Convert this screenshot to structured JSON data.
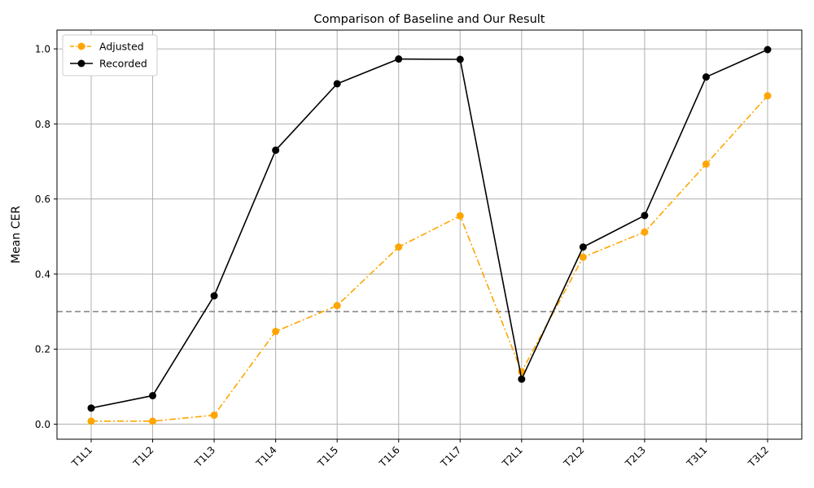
{
  "chart_data": {
    "type": "line",
    "title": "Comparison of Baseline and Our Result",
    "xlabel": "",
    "ylabel": "Mean CER",
    "categories": [
      "T1L1",
      "T1L2",
      "T1L3",
      "T1L4",
      "T1L5",
      "T1L6",
      "T1L7",
      "T2L1",
      "T2L2",
      "T2L3",
      "T3L1",
      "T3L2"
    ],
    "series": [
      {
        "name": "Adjusted",
        "color": "#ffa500",
        "line_style": "dashdot",
        "marker": "circle",
        "values": [
          0.008,
          0.008,
          0.024,
          0.247,
          0.316,
          0.472,
          0.555,
          0.14,
          0.445,
          0.512,
          0.693,
          0.875
        ]
      },
      {
        "name": "Recorded",
        "color": "#000000",
        "line_style": "solid",
        "marker": "circle",
        "values": [
          0.043,
          0.076,
          0.342,
          0.73,
          0.907,
          0.973,
          0.972,
          0.12,
          0.472,
          0.556,
          0.925,
          0.998
        ]
      }
    ],
    "reference_line": {
      "y": 0.3,
      "color": "#808080",
      "style": "dashed"
    },
    "ylim": [
      -0.04,
      1.05
    ],
    "yticks": [
      "0.0",
      "0.2",
      "0.4",
      "0.6",
      "0.8",
      "1.0"
    ],
    "grid": true,
    "legend_position": "top-left",
    "xtick_rotation": 45
  }
}
